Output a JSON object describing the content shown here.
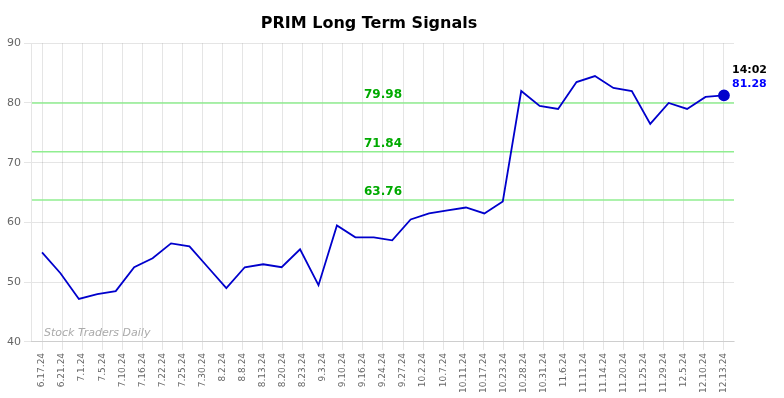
{
  "chart_data": {
    "type": "line",
    "title": "PRIM Long Term Signals",
    "x": [
      0,
      0.918919,
      1.837838,
      2.756757,
      3.675676,
      4.594595,
      5.513514,
      6.432432,
      7.351351,
      8.27027,
      9.189189,
      10.108108,
      11.027027,
      11.945946,
      12.864865,
      13.783784,
      14.702703,
      15.621622,
      16.540541,
      17.459459,
      18.378378,
      19.297297,
      20.216216,
      21.135135,
      22.054054,
      22.972973,
      23.891892,
      24.810811,
      25.72973,
      26.648649,
      27.567568,
      28.486486,
      29.405405,
      30.324324,
      31.243243,
      32.162162,
      33.081081,
      34
    ],
    "values": [
      55.0,
      51.5,
      47.2,
      48.0,
      48.5,
      52.5,
      54.0,
      56.5,
      56.0,
      52.5,
      49.0,
      52.5,
      53.0,
      52.5,
      55.5,
      49.5,
      59.5,
      57.5,
      57.5,
      57.0,
      60.5,
      61.5,
      62.0,
      62.5,
      61.5,
      63.5,
      82.0,
      79.5,
      79.0,
      83.5,
      84.5,
      82.5,
      82.0,
      76.5,
      80.0,
      79.0,
      81.0,
      81.28
    ],
    "color": "#0000CC",
    "marker": "last",
    "xlim": [
      -0.5,
      34.5
    ],
    "xticks": [
      {
        "value": 0,
        "label": "6.17.24"
      },
      {
        "value": 1,
        "label": "6.21.24"
      },
      {
        "value": 2,
        "label": "7.1.24"
      },
      {
        "value": 3,
        "label": "7.5.24"
      },
      {
        "value": 4,
        "label": "7.10.24"
      },
      {
        "value": 5,
        "label": "7.16.24"
      },
      {
        "value": 6,
        "label": "7.22.24"
      },
      {
        "value": 7,
        "label": "7.25.24"
      },
      {
        "value": 8,
        "label": "7.30.24"
      },
      {
        "value": 9,
        "label": "8.2.24"
      },
      {
        "value": 10,
        "label": "8.8.24"
      },
      {
        "value": 11,
        "label": "8.13.24"
      },
      {
        "value": 12,
        "label": "8.20.24"
      },
      {
        "value": 13,
        "label": "8.23.24"
      },
      {
        "value": 14,
        "label": "9.3.24"
      },
      {
        "value": 15,
        "label": "9.10.24"
      },
      {
        "value": 16,
        "label": "9.16.24"
      },
      {
        "value": 17,
        "label": "9.24.24"
      },
      {
        "value": 18,
        "label": "9.27.24"
      },
      {
        "value": 19,
        "label": "10.2.24"
      },
      {
        "value": 20,
        "label": "10.7.24"
      },
      {
        "value": 21,
        "label": "10.11.24"
      },
      {
        "value": 22,
        "label": "10.17.24"
      },
      {
        "value": 23,
        "label": "10.23.24"
      },
      {
        "value": 24,
        "label": "10.28.24"
      },
      {
        "value": 25,
        "label": "10.31.24"
      },
      {
        "value": 26,
        "label": "11.6.24"
      },
      {
        "value": 27,
        "label": "11.11.24"
      },
      {
        "value": 28,
        "label": "11.14.24"
      },
      {
        "value": 29,
        "label": "11.20.24"
      },
      {
        "value": 30,
        "label": "11.25.24"
      },
      {
        "value": 31,
        "label": "11.29.24"
      },
      {
        "value": 32,
        "label": "12.5.24"
      },
      {
        "value": 33,
        "label": "12.10.24"
      },
      {
        "value": 34,
        "label": "12.13.24"
      }
    ],
    "ylim": [
      40,
      90
    ],
    "yticks": [
      40,
      50,
      60,
      70,
      80,
      90
    ],
    "grid": true,
    "hlines": [
      {
        "value": 63.76,
        "label": "63.76",
        "color": "#90EE90"
      },
      {
        "value": 71.84,
        "label": "71.84",
        "color": "#90EE90"
      },
      {
        "value": 79.98,
        "label": "79.98",
        "color": "#90EE90"
      }
    ],
    "watermark": "Stock Traders Daily",
    "annotations": [
      {
        "text": "14:02"
      },
      {
        "text": "81.28",
        "color": "#0000FF"
      }
    ]
  }
}
